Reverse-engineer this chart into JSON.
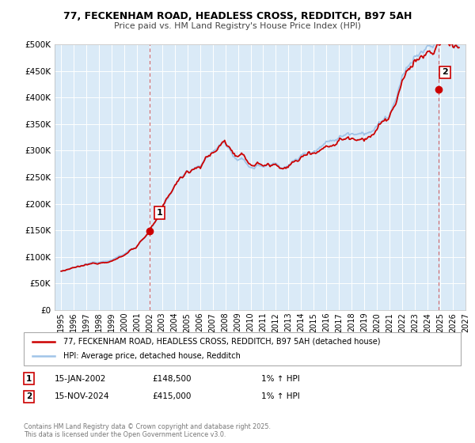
{
  "title1": "77, FECKENHAM ROAD, HEADLESS CROSS, REDDITCH, B97 5AH",
  "title2": "Price paid vs. HM Land Registry's House Price Index (HPI)",
  "bg_color": "#daeaf7",
  "property_color": "#cc0000",
  "hpi_color": "#a0c4e8",
  "ylim": [
    0,
    500000
  ],
  "xlim_start": 1994.5,
  "xlim_end": 2027.0,
  "yticks": [
    0,
    50000,
    100000,
    150000,
    200000,
    250000,
    300000,
    350000,
    400000,
    450000,
    500000
  ],
  "ytick_labels": [
    "£0",
    "£50K",
    "£100K",
    "£150K",
    "£200K",
    "£250K",
    "£300K",
    "£350K",
    "£400K",
    "£450K",
    "£500K"
  ],
  "purchase1_x": 2002.04,
  "purchase1_y": 148500,
  "purchase2_x": 2024.88,
  "purchase2_y": 415000,
  "vline1_x": 2002.04,
  "vline2_x": 2024.88,
  "legend_property": "77, FECKENHAM ROAD, HEADLESS CROSS, REDDITCH, B97 5AH (detached house)",
  "legend_hpi": "HPI: Average price, detached house, Redditch",
  "annotation1_date": "15-JAN-2002",
  "annotation1_price": "£148,500",
  "annotation1_hpi": "1% ↑ HPI",
  "annotation2_date": "15-NOV-2024",
  "annotation2_price": "£415,000",
  "annotation2_hpi": "1% ↑ HPI",
  "footer": "Contains HM Land Registry data © Crown copyright and database right 2025.\nThis data is licensed under the Open Government Licence v3.0."
}
